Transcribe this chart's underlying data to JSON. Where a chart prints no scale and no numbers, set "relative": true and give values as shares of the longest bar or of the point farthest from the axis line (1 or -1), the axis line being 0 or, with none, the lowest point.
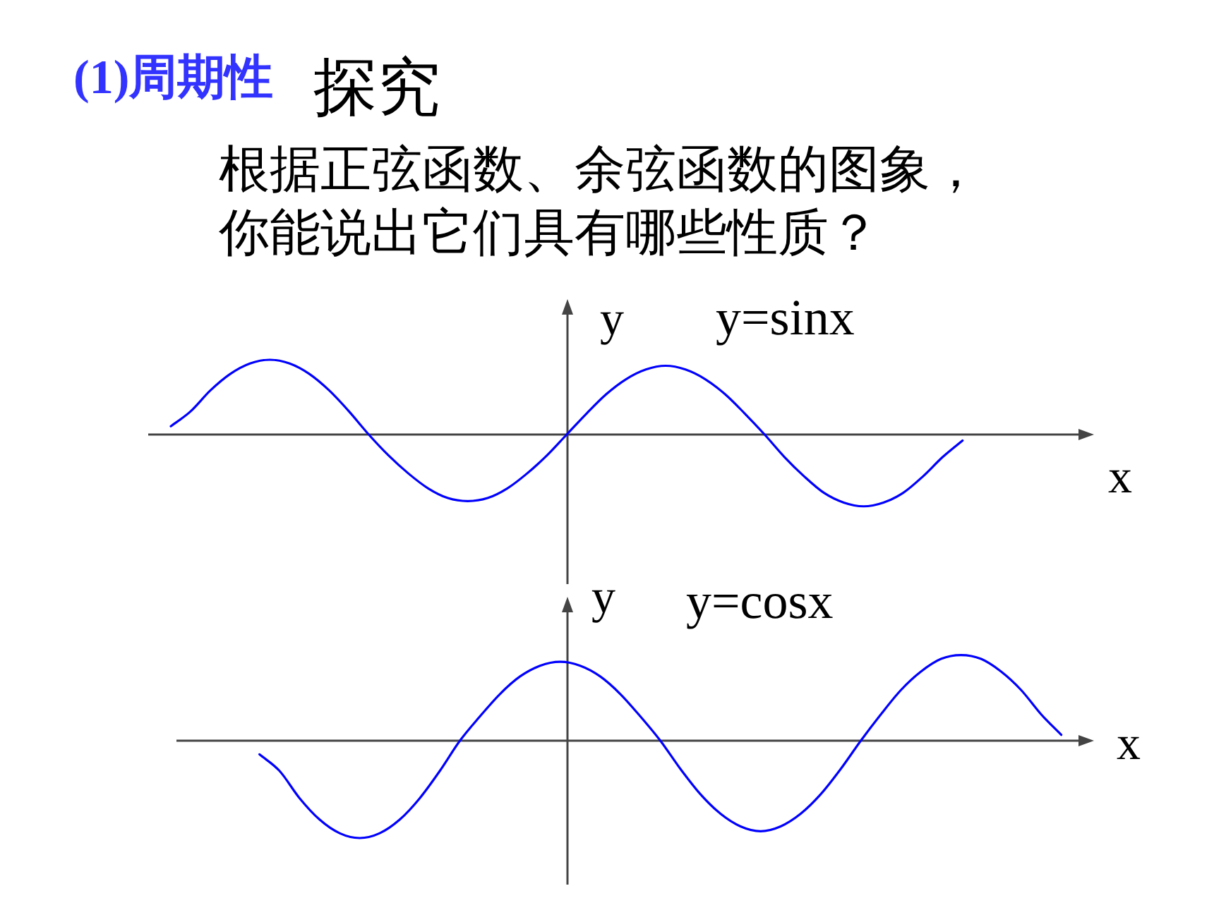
{
  "chart_data": [
    {
      "type": "line",
      "relative": true,
      "title": "(1)周期性",
      "subtitle": "探究",
      "annotations": [
        "根据正弦函数、余弦函数的图象，你能说出它们具有哪些性质？"
      ],
      "xlabel": "x",
      "ylabel": "y",
      "categories": [
        null,
        null,
        null,
        null,
        null,
        null,
        null,
        null,
        null,
        null,
        null,
        null,
        null,
        null,
        null,
        null,
        null,
        null,
        null,
        null,
        null,
        null,
        null,
        null,
        null,
        null,
        null,
        null,
        null,
        null,
        null,
        null,
        null,
        null,
        null,
        null,
        null,
        null,
        null,
        null,
        null,
        null,
        null,
        null,
        null,
        null,
        null,
        null
      ],
      "series": [
        {
          "name": "y=sinx",
          "color": "#0000ff",
          "values": [
            null,
            0.11,
            0.31,
            0.59,
            0.81,
            0.95,
            1,
            0.95,
            0.81,
            0.59,
            0.31,
            0,
            -0.28,
            -0.52,
            -0.72,
            -0.85,
            -0.89,
            -0.85,
            -0.72,
            -0.52,
            -0.28,
            0,
            0.28,
            0.54,
            0.74,
            0.87,
            0.92,
            0.87,
            0.74,
            0.54,
            0.28,
            0,
            -0.3,
            -0.56,
            -0.78,
            -0.91,
            -0.96,
            -0.91,
            -0.78,
            -0.56,
            -0.3,
            -0.08,
            null,
            null,
            null,
            null,
            null,
            null
          ]
        }
      ]
    },
    {
      "type": "line",
      "relative": true,
      "xlabel": "x",
      "ylabel": "y",
      "categories": [
        null,
        null,
        null,
        null,
        null,
        null,
        null,
        null,
        null,
        null,
        null,
        null,
        null,
        null,
        null,
        null,
        null,
        null,
        null,
        null,
        null,
        null,
        null,
        null,
        null,
        null,
        null,
        null,
        null,
        null,
        null,
        null,
        null,
        null,
        null,
        null,
        null,
        null,
        null,
        null,
        null,
        null,
        null,
        null,
        null,
        null
      ],
      "series": [
        {
          "name": "y=cosx",
          "color": "#0000ff",
          "values": [
            null,
            null,
            null,
            null,
            -0.14,
            -0.31,
            -0.59,
            -0.81,
            -0.95,
            -1,
            -0.95,
            -0.81,
            -0.59,
            -0.31,
            0,
            0.25,
            0.48,
            0.66,
            0.77,
            0.81,
            0.77,
            0.66,
            0.48,
            0.25,
            0,
            -0.29,
            -0.55,
            -0.75,
            -0.88,
            -0.93,
            -0.88,
            -0.75,
            -0.55,
            -0.29,
            0,
            0.27,
            0.52,
            0.71,
            0.84,
            0.88,
            0.84,
            0.71,
            0.52,
            0.27,
            0.06,
            null
          ]
        }
      ]
    }
  ]
}
